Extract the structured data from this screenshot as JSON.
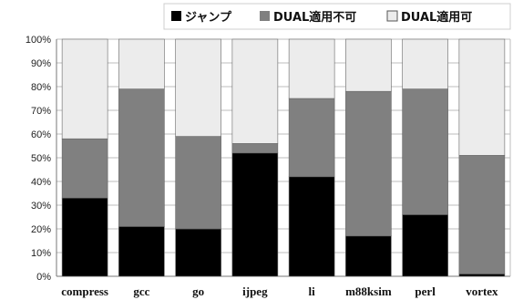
{
  "chart_data": {
    "type": "bar",
    "stacked": true,
    "categories": [
      "compress",
      "gcc",
      "go",
      "ijpeg",
      "li",
      "m88ksim",
      "perl",
      "vortex"
    ],
    "series": [
      {
        "name": "ジャンプ",
        "color": "#000000",
        "values": [
          33,
          21,
          20,
          52,
          42,
          17,
          26,
          1
        ]
      },
      {
        "name": "DUAL適用不可",
        "color": "#808080",
        "values": [
          25,
          58,
          39,
          4,
          33,
          61,
          53,
          50
        ]
      },
      {
        "name": "DUAL適用可",
        "color": "#ececec",
        "values": [
          42,
          21,
          41,
          44,
          25,
          22,
          21,
          49
        ]
      }
    ],
    "ylim": [
      0,
      100
    ],
    "yticks": [
      "0%",
      "10%",
      "20%",
      "30%",
      "40%",
      "50%",
      "60%",
      "70%",
      "80%",
      "90%",
      "100%"
    ],
    "grid": true,
    "legend_position": "top"
  }
}
